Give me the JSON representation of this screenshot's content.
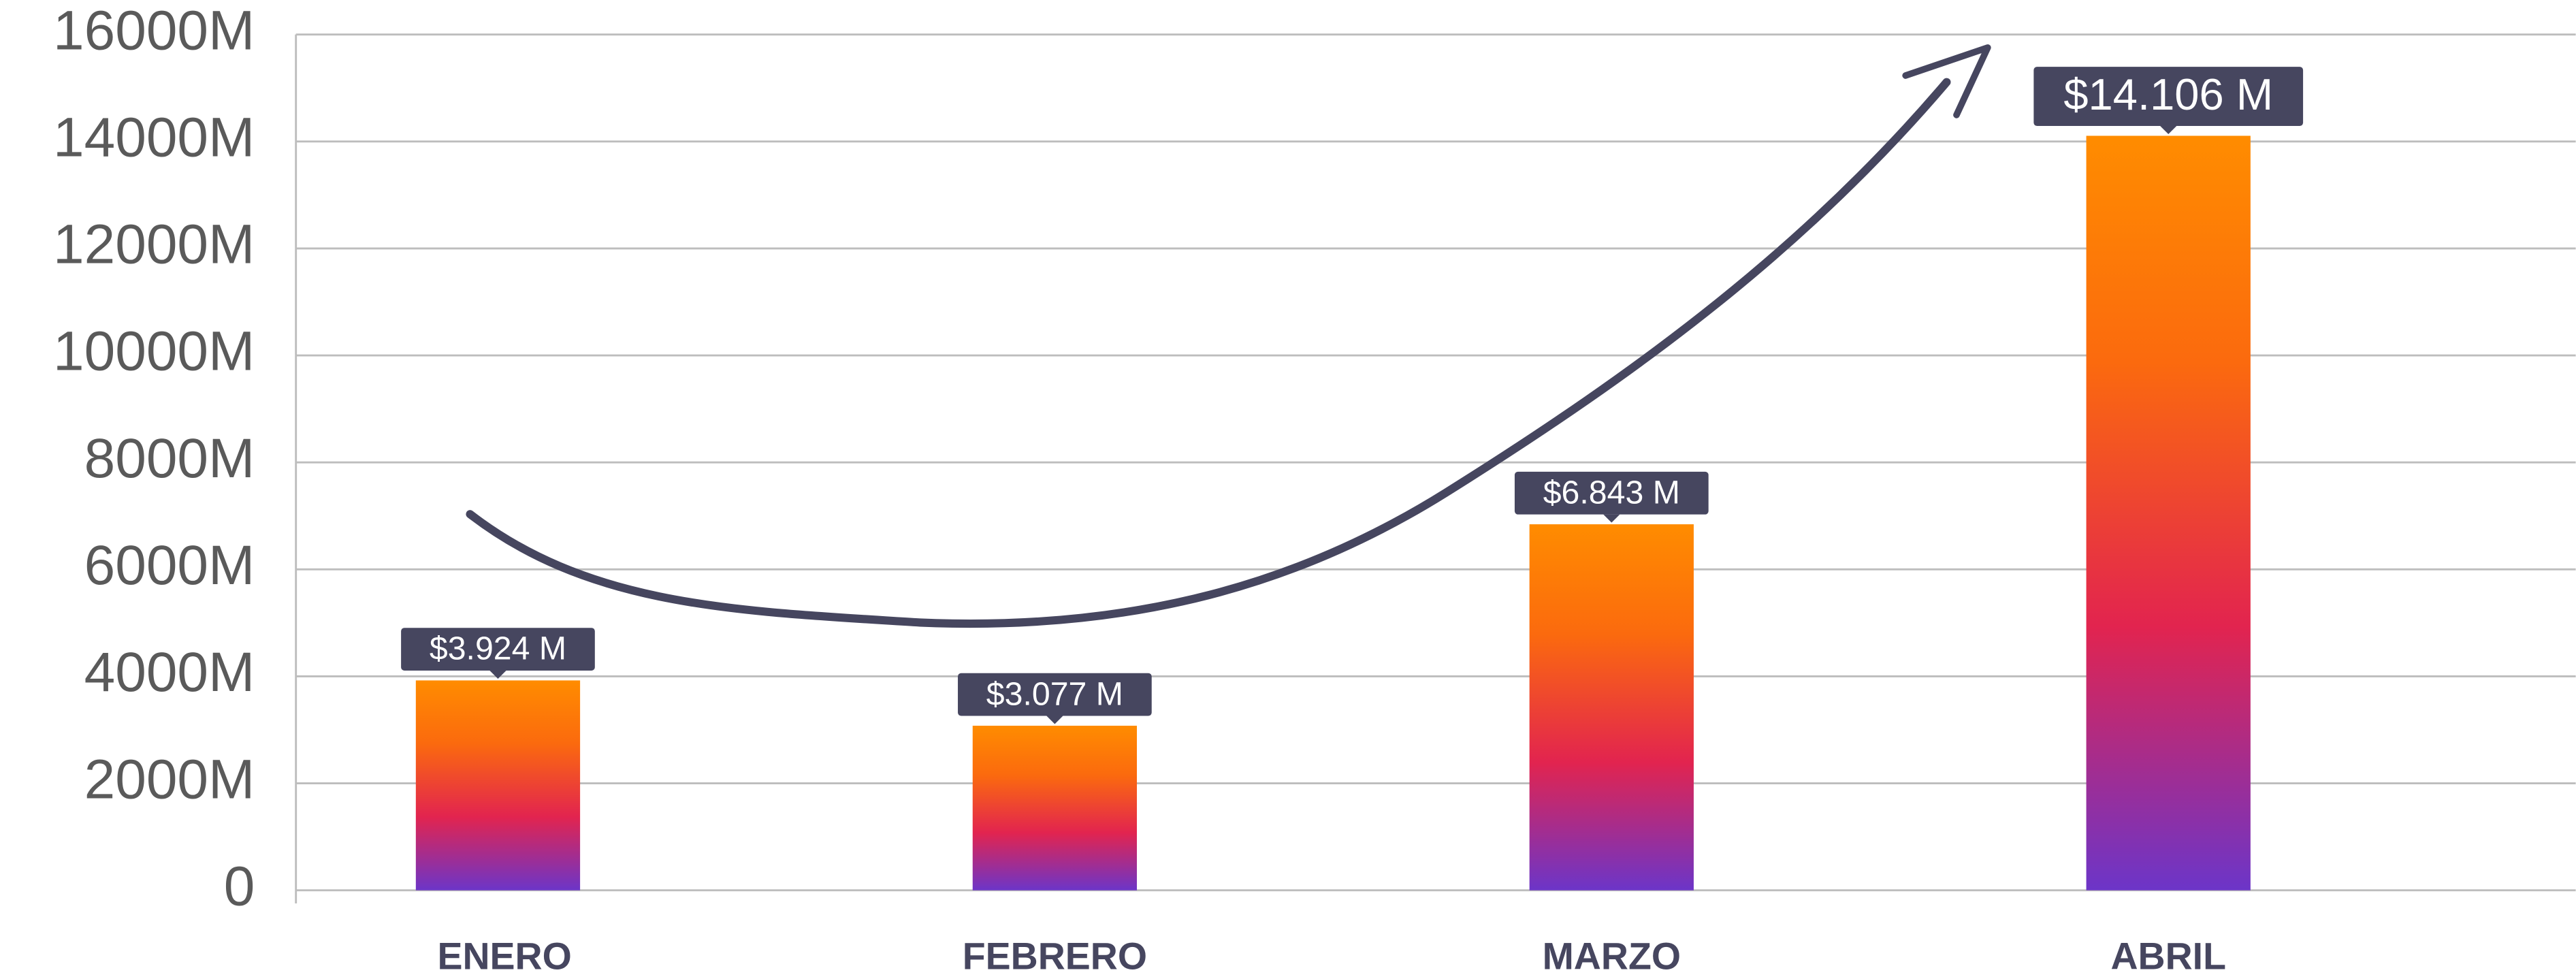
{
  "chart_data": {
    "type": "bar",
    "categories": [
      "ENERO",
      "FEBRERO",
      "MARZO",
      "ABRIL"
    ],
    "values": [
      3924,
      3077,
      6843,
      14106
    ],
    "value_labels": [
      "$3.924 M",
      "$3.077 M",
      "$6.843 M",
      "$14.106 M"
    ],
    "ylim": [
      0,
      16000
    ],
    "yticks": [
      0,
      {
        "value": 2000,
        "label": "2000M"
      },
      {
        "value": 4000,
        "label": "4000M"
      },
      {
        "value": 6000,
        "label": "6000M"
      },
      {
        "value": 8000,
        "label": "8000M"
      },
      {
        "value": 10000,
        "label": "10000M"
      },
      {
        "value": 12000,
        "label": "12000M"
      },
      {
        "value": 14000,
        "label": "14000M"
      },
      {
        "value": 16000,
        "label": "16000M"
      }
    ],
    "grid": true
  }
}
